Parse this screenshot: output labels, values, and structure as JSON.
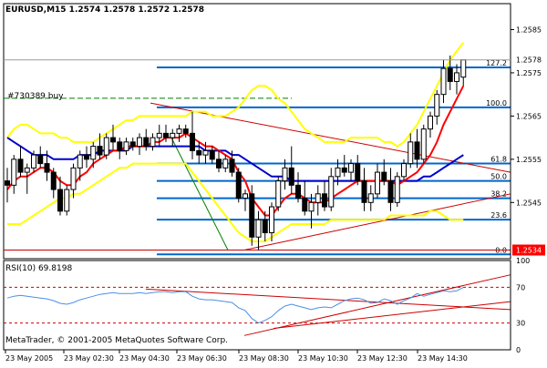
{
  "colors": {
    "background": "#ffffff",
    "frame": "#000000",
    "bull_candle": "#ffffff",
    "bear_candle": "#000000",
    "bollinger": "#ffff00",
    "ma_fast": "#ff0000",
    "ma_slow": "#0000cc",
    "fibo": "#0066cc",
    "trendline": "#cc0000",
    "rsi_line": "#4a90e2",
    "rsi_level": "#cc0000",
    "order_line": "#008000",
    "price_box": "#ff0000"
  },
  "header": {
    "title": "EURUSD,M15  1.2574 1.2578 1.2572 1.2578"
  },
  "order_label": "#730389 buy",
  "price_axis": {
    "ticks": [
      "1.2585",
      "1.2575",
      "1.2565",
      "1.2555",
      "1.2545"
    ],
    "current_price": "1.2578",
    "order_price": "1.2534"
  },
  "fibo_levels": [
    "127.2",
    "100.0",
    "61.8",
    "50.0",
    "38.2",
    "23.6",
    "0.0"
  ],
  "rsi": {
    "label": "RSI(10) 69.8198",
    "axis_labels": [
      "100",
      "70",
      "30",
      "0"
    ]
  },
  "copyright": "MetaTrader, © 2001-2005 MetaQuotes Software Corp.",
  "time_axis": [
    "23 May 2005",
    "23 May 02:30",
    "23 May 04:30",
    "23 May 06:30",
    "23 May 08:30",
    "23 May 10:30",
    "23 May 12:30",
    "23 May 14:30"
  ],
  "chart_data": [
    {
      "type": "candlestick",
      "title": "EURUSD,M15",
      "ohlc_last": [
        1.2574,
        1.2578,
        1.2572,
        1.2578
      ],
      "ylim": [
        1.2532,
        1.2591
      ],
      "candles": [
        [
          1.255,
          1.2553,
          1.2545,
          1.2549
        ],
        [
          1.2549,
          1.2556,
          1.2547,
          1.2555
        ],
        [
          1.2555,
          1.2558,
          1.2551,
          1.2552
        ],
        [
          1.2552,
          1.2554,
          1.2547,
          1.2553
        ],
        [
          1.2553,
          1.2557,
          1.2552,
          1.2556
        ],
        [
          1.2556,
          1.2558,
          1.2553,
          1.2554
        ],
        [
          1.2554,
          1.2557,
          1.255,
          1.2552
        ],
        [
          1.2552,
          1.2553,
          1.2546,
          1.2548
        ],
        [
          1.2548,
          1.2551,
          1.2542,
          1.2543
        ],
        [
          1.2543,
          1.2549,
          1.2542,
          1.2548
        ],
        [
          1.2548,
          1.2554,
          1.2546,
          1.2553
        ],
        [
          1.2553,
          1.2557,
          1.255,
          1.2556
        ],
        [
          1.2556,
          1.2558,
          1.2553,
          1.2555
        ],
        [
          1.2555,
          1.2559,
          1.2553,
          1.2558
        ],
        [
          1.2558,
          1.2561,
          1.2555,
          1.2556
        ],
        [
          1.2556,
          1.2561,
          1.2555,
          1.256
        ],
        [
          1.256,
          1.2563,
          1.2557,
          1.2559
        ],
        [
          1.2559,
          1.256,
          1.2555,
          1.2557
        ],
        [
          1.2557,
          1.256,
          1.2556,
          1.2559
        ],
        [
          1.2559,
          1.256,
          1.2557,
          1.2558
        ],
        [
          1.2558,
          1.2561,
          1.2556,
          1.256
        ],
        [
          1.256,
          1.2562,
          1.2557,
          1.2558
        ],
        [
          1.2558,
          1.2561,
          1.2557,
          1.256
        ],
        [
          1.256,
          1.2563,
          1.2558,
          1.2561
        ],
        [
          1.2561,
          1.2563,
          1.2559,
          1.256
        ],
        [
          1.256,
          1.2562,
          1.2558,
          1.2561
        ],
        [
          1.2561,
          1.2563,
          1.2559,
          1.2562
        ],
        [
          1.2562,
          1.2563,
          1.256,
          1.2561
        ],
        [
          1.2561,
          1.2566,
          1.2555,
          1.2557
        ],
        [
          1.2557,
          1.2559,
          1.2554,
          1.2556
        ],
        [
          1.2556,
          1.2559,
          1.2554,
          1.2557
        ],
        [
          1.2557,
          1.2558,
          1.2554,
          1.2555
        ],
        [
          1.2555,
          1.2557,
          1.2552,
          1.2553
        ],
        [
          1.2553,
          1.2556,
          1.2552,
          1.2555
        ],
        [
          1.2555,
          1.2557,
          1.2551,
          1.2552
        ],
        [
          1.2552,
          1.2553,
          1.2545,
          1.2546
        ],
        [
          1.2546,
          1.2548,
          1.2543,
          1.2547
        ],
        [
          1.2547,
          1.2549,
          1.2535,
          1.2537
        ],
        [
          1.2537,
          1.2543,
          1.2534,
          1.2541
        ],
        [
          1.2541,
          1.2543,
          1.2536,
          1.2538
        ],
        [
          1.2538,
          1.2545,
          1.2536,
          1.2544
        ],
        [
          1.2544,
          1.2551,
          1.2543,
          1.255
        ],
        [
          1.255,
          1.2555,
          1.2548,
          1.2553
        ],
        [
          1.2553,
          1.2558,
          1.2547,
          1.2549
        ],
        [
          1.2549,
          1.2552,
          1.2545,
          1.2546
        ],
        [
          1.2546,
          1.255,
          1.2542,
          1.2543
        ],
        [
          1.2543,
          1.2547,
          1.2539,
          1.2545
        ],
        [
          1.2545,
          1.2549,
          1.2542,
          1.2547
        ],
        [
          1.2547,
          1.255,
          1.2543,
          1.2544
        ],
        [
          1.2544,
          1.2553,
          1.2543,
          1.2551
        ],
        [
          1.2551,
          1.2555,
          1.2549,
          1.2553
        ],
        [
          1.2553,
          1.2556,
          1.2551,
          1.2552
        ],
        [
          1.2552,
          1.2555,
          1.255,
          1.2554
        ],
        [
          1.2554,
          1.2556,
          1.2549,
          1.255
        ],
        [
          1.255,
          1.2553,
          1.2543,
          1.2545
        ],
        [
          1.2545,
          1.2549,
          1.2543,
          1.2547
        ],
        [
          1.2547,
          1.2554,
          1.2546,
          1.2552
        ],
        [
          1.2552,
          1.2555,
          1.2549,
          1.255
        ],
        [
          1.255,
          1.2553,
          1.2543,
          1.2545
        ],
        [
          1.2545,
          1.2552,
          1.2544,
          1.2551
        ],
        [
          1.2551,
          1.2555,
          1.255,
          1.2554
        ],
        [
          1.2554,
          1.2561,
          1.2553,
          1.2559
        ],
        [
          1.2559,
          1.2562,
          1.2553,
          1.2555
        ],
        [
          1.2555,
          1.2563,
          1.2554,
          1.2562
        ],
        [
          1.2562,
          1.2566,
          1.256,
          1.2565
        ],
        [
          1.2565,
          1.2571,
          1.2563,
          1.257
        ],
        [
          1.257,
          1.2578,
          1.2568,
          1.2576
        ],
        [
          1.2576,
          1.2579,
          1.2571,
          1.2573
        ],
        [
          1.2573,
          1.2577,
          1.257,
          1.2575
        ],
        [
          1.2574,
          1.2578,
          1.2572,
          1.2578
        ]
      ],
      "ma_fast": [
        1.2548,
        1.255,
        1.2551,
        1.2551,
        1.2552,
        1.2553,
        1.2553,
        1.2552,
        1.255,
        1.2549,
        1.2549,
        1.2551,
        1.2552,
        1.2554,
        1.2555,
        1.2556,
        1.2557,
        1.2557,
        1.2558,
        1.2558,
        1.2558,
        1.2558,
        1.2559,
        1.2559,
        1.256,
        1.256,
        1.256,
        1.2561,
        1.256,
        1.2559,
        1.2558,
        1.2558,
        1.2557,
        1.2556,
        1.2555,
        1.2552,
        1.255,
        1.2546,
        1.2544,
        1.2542,
        1.2542,
        1.2544,
        1.2546,
        1.2547,
        1.2547,
        1.2546,
        1.2545,
        1.2545,
        1.2545,
        1.2546,
        1.2547,
        1.2548,
        1.2549,
        1.255,
        1.255,
        1.255,
        1.255,
        1.255,
        1.255,
        1.2549,
        1.255,
        1.2551,
        1.2552,
        1.2554,
        1.2556,
        1.2559,
        1.2563,
        1.2566,
        1.2569,
        1.2572
      ],
      "ma_slow": [
        1.256,
        1.2559,
        1.2558,
        1.2557,
        1.2556,
        1.2556,
        1.2556,
        1.2555,
        1.2555,
        1.2555,
        1.2555,
        1.2556,
        1.2556,
        1.2556,
        1.2557,
        1.2557,
        1.2557,
        1.2557,
        1.2557,
        1.2558,
        1.2558,
        1.2558,
        1.2558,
        1.2558,
        1.2558,
        1.2558,
        1.2558,
        1.2558,
        1.2558,
        1.2558,
        1.2557,
        1.2557,
        1.2557,
        1.2557,
        1.2556,
        1.2556,
        1.2555,
        1.2554,
        1.2553,
        1.2552,
        1.2551,
        1.2551,
        1.2551,
        1.255,
        1.255,
        1.255,
        1.255,
        1.255,
        1.255,
        1.255,
        1.255,
        1.255,
        1.255,
        1.255,
        1.255,
        1.255,
        1.255,
        1.255,
        1.255,
        1.255,
        1.255,
        1.255,
        1.255,
        1.2551,
        1.2551,
        1.2552,
        1.2553,
        1.2554,
        1.2555,
        1.2556
      ],
      "bb_upper": [
        1.256,
        1.2562,
        1.2563,
        1.2563,
        1.2562,
        1.2561,
        1.2561,
        1.2561,
        1.256,
        1.256,
        1.2559,
        1.2559,
        1.2559,
        1.2559,
        1.256,
        1.2561,
        1.2562,
        1.2563,
        1.2564,
        1.2564,
        1.2565,
        1.2565,
        1.2565,
        1.2565,
        1.2565,
        1.2565,
        1.2565,
        1.2565,
        1.2566,
        1.2566,
        1.2566,
        1.2565,
        1.2565,
        1.2565,
        1.2566,
        1.2567,
        1.2569,
        1.2571,
        1.2572,
        1.2572,
        1.2571,
        1.2569,
        1.2568,
        1.2566,
        1.2564,
        1.2562,
        1.2561,
        1.256,
        1.2559,
        1.2559,
        1.2559,
        1.2559,
        1.256,
        1.256,
        1.256,
        1.256,
        1.256,
        1.2559,
        1.2559,
        1.2558,
        1.2559,
        1.2561,
        1.2563,
        1.2566,
        1.2569,
        1.2572,
        1.2575,
        1.2578,
        1.258,
        1.2582
      ],
      "bb_lower": [
        1.254,
        1.254,
        1.254,
        1.2541,
        1.2542,
        1.2543,
        1.2544,
        1.2545,
        1.2546,
        1.2546,
        1.2547,
        1.2547,
        1.2548,
        1.2549,
        1.255,
        1.2551,
        1.2552,
        1.2553,
        1.2553,
        1.2554,
        1.2554,
        1.2554,
        1.2554,
        1.2554,
        1.2554,
        1.2554,
        1.2554,
        1.2554,
        1.2552,
        1.255,
        1.2548,
        1.2546,
        1.2544,
        1.2542,
        1.254,
        1.2538,
        1.2537,
        1.2536,
        1.2536,
        1.2536,
        1.2537,
        1.2538,
        1.2539,
        1.254,
        1.254,
        1.254,
        1.254,
        1.254,
        1.254,
        1.2541,
        1.2541,
        1.2541,
        1.2541,
        1.2541,
        1.2541,
        1.2541,
        1.2541,
        1.2541,
        1.2542,
        1.2542,
        1.2542,
        1.2542,
        1.2542,
        1.2542,
        1.2543,
        1.2543,
        1.2542,
        1.2541,
        1.2541,
        1.2541
      ]
    },
    {
      "type": "line",
      "title": "RSI(10) 69.8198",
      "ylim": [
        0,
        100
      ],
      "levels": [
        70,
        30
      ],
      "values": [
        58,
        60,
        61,
        60,
        59,
        58,
        57,
        55,
        52,
        51,
        53,
        56,
        58,
        60,
        62,
        63,
        64,
        63,
        63,
        63,
        64,
        63,
        64,
        65,
        65,
        64,
        65,
        65,
        60,
        57,
        56,
        56,
        55,
        54,
        53,
        47,
        44,
        35,
        30,
        33,
        37,
        44,
        49,
        51,
        49,
        47,
        45,
        47,
        48,
        47,
        51,
        55,
        57,
        58,
        56,
        52,
        53,
        57,
        55,
        51,
        55,
        58,
        63,
        60,
        62,
        64,
        66,
        65,
        66,
        69.82
      ]
    }
  ]
}
